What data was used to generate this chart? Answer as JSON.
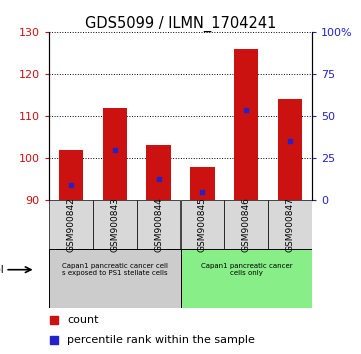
{
  "title": "GDS5099 / ILMN_1704241",
  "categories": [
    "GSM900842",
    "GSM900843",
    "GSM900844",
    "GSM900845",
    "GSM900846",
    "GSM900847"
  ],
  "bar_bottom": 90,
  "bar_tops": [
    102.0,
    112.0,
    103.0,
    98.0,
    126.0,
    114.0
  ],
  "percentile_values": [
    93.5,
    102.0,
    95.0,
    92.0,
    111.5,
    104.0
  ],
  "ylim": [
    90,
    130
  ],
  "y2lim": [
    0,
    100
  ],
  "yticks": [
    90,
    100,
    110,
    120,
    130
  ],
  "y2ticks": [
    0,
    25,
    50,
    75,
    100
  ],
  "y2ticklabels": [
    "0",
    "25",
    "50",
    "75",
    "100%"
  ],
  "bar_color": "#cc1111",
  "percentile_color": "#2222cc",
  "background_color": "#ffffff",
  "group1_label_line1": "Capan1 pancreatic cancer cell",
  "group1_label_line2": "s exposed to PS1 stellate cells",
  "group2_label_line1": "Capan1 pancreatic cancer",
  "group2_label_line2": "cells only",
  "group1_color": "#cccccc",
  "group2_color": "#88ee88",
  "group1_indices": [
    0,
    1,
    2
  ],
  "group2_indices": [
    3,
    4,
    5
  ],
  "legend_count_label": "count",
  "legend_pct_label": "percentile rank within the sample",
  "bar_width": 0.55
}
